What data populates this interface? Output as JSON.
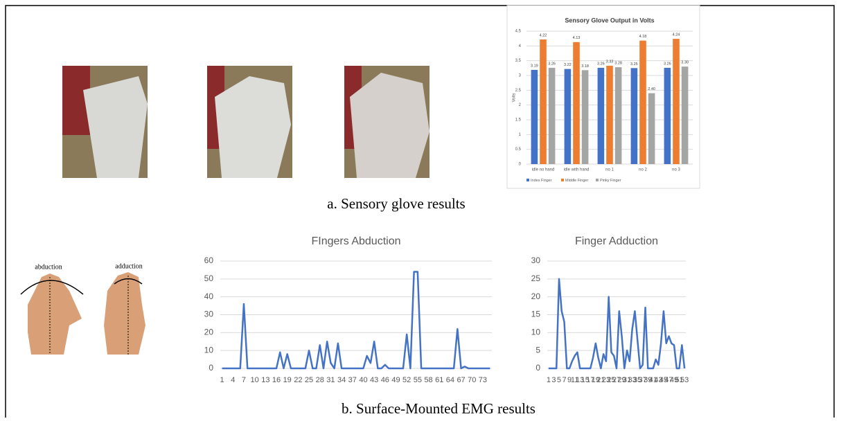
{
  "chart_data": [
    {
      "type": "bar",
      "title": "Sensory Glove Output in Volts",
      "ylabel": "Volts",
      "categories": [
        "idle no hand",
        "idle with hand",
        "no 1",
        "no 2",
        "no 3"
      ],
      "series": [
        {
          "name": "Index Finger",
          "color": "#4472c4",
          "values": [
            3.19,
            3.22,
            3.26,
            3.25,
            3.26
          ],
          "value_labels": [
            "3.19",
            "3.22",
            "3.26",
            "3.25",
            "3.26"
          ]
        },
        {
          "name": "Middle Finger",
          "color": "#ed7d31",
          "values": [
            4.22,
            4.13,
            3.33,
            4.18,
            4.24
          ],
          "value_labels": [
            "4.22",
            "4.13",
            "3.33",
            "4.18",
            "4.24"
          ]
        },
        {
          "name": "Pinky Finger",
          "color": "#a5a5a5",
          "values": [
            3.26,
            3.18,
            3.28,
            2.4,
            3.3
          ],
          "value_labels": [
            "3.26",
            "3.18",
            "3.28",
            "2.40",
            "3.30"
          ]
        }
      ],
      "ylim": [
        0,
        4.5
      ],
      "yticks": [
        0,
        0.5,
        1,
        1.5,
        2,
        2.5,
        3,
        3.5,
        4,
        4.5
      ],
      "grid": true,
      "legend": "bottom"
    },
    {
      "type": "line",
      "title": "FIngers Abduction",
      "color": "#4472c4",
      "categories": [
        "1",
        null,
        null,
        "4",
        null,
        null,
        "7",
        null,
        null,
        "10",
        null,
        null,
        "13",
        null,
        null,
        "16",
        null,
        null,
        "19",
        null,
        null,
        "22",
        null,
        null,
        "25",
        null,
        null,
        "28",
        null,
        null,
        "31",
        null,
        null,
        "34",
        null,
        null,
        "37",
        null,
        null,
        "40",
        null,
        null,
        "43",
        null,
        null,
        "46",
        null,
        null,
        "49",
        null,
        null,
        "52",
        null,
        null,
        "55",
        null,
        null,
        "58",
        null,
        null,
        "61",
        null,
        null,
        "64",
        null,
        null,
        "67",
        null,
        null,
        "70",
        null,
        null,
        "73",
        null,
        null
      ],
      "values": [
        0,
        0,
        0,
        0,
        0,
        0,
        36,
        0,
        0,
        0,
        0,
        0,
        0,
        0,
        0,
        0,
        9,
        0,
        8,
        0,
        0,
        0,
        0,
        0,
        10,
        0,
        0,
        13,
        0,
        15,
        3,
        0,
        14,
        0,
        0,
        0,
        0,
        0,
        0,
        0,
        7,
        3,
        15,
        0,
        0,
        2,
        0,
        0,
        0,
        0,
        0,
        19,
        0,
        54,
        54,
        0,
        0,
        0,
        0,
        0,
        0,
        0,
        0,
        0,
        0,
        22,
        0,
        1,
        0,
        0,
        0,
        0,
        0,
        0,
        0
      ],
      "ylim": [
        0,
        60
      ],
      "yticks": [
        0,
        10,
        20,
        30,
        40,
        50,
        60
      ],
      "grid": true
    },
    {
      "type": "line",
      "title": "Finger Adduction",
      "color": "#4472c4",
      "categories": [
        "1",
        null,
        "3",
        null,
        "5",
        null,
        "7",
        null,
        "9",
        null,
        "11",
        null,
        "13",
        null,
        "15",
        null,
        "17",
        null,
        "19",
        null,
        "21",
        null,
        "23",
        null,
        "25",
        null,
        "27",
        null,
        "29",
        null,
        "31",
        null,
        "33",
        null,
        "35",
        null,
        "37",
        null,
        "39",
        null,
        "41",
        null,
        "43",
        null,
        "45",
        null,
        "47",
        null,
        "49",
        null,
        "51",
        null,
        "53"
      ],
      "values": [
        0,
        0,
        0,
        0,
        25,
        16,
        13,
        0,
        0,
        2,
        3.5,
        4.5,
        0,
        0,
        0,
        0,
        0,
        3,
        7,
        3,
        0,
        4,
        2,
        20,
        4.5,
        3.5,
        0,
        16,
        9,
        0,
        5,
        2,
        11,
        16,
        8,
        0,
        1,
        17,
        0,
        0,
        0,
        2.5,
        1,
        7,
        16,
        7,
        9,
        7,
        6.5,
        0,
        0,
        6.5,
        0
      ],
      "ylim": [
        0,
        30
      ],
      "yticks": [
        0,
        5,
        10,
        15,
        20,
        25,
        30
      ],
      "grid": true
    }
  ],
  "captions": [
    "a. Sensory glove results",
    "b. Surface-Mounted EMG results"
  ],
  "hand_labels": [
    "abduction",
    "adduction"
  ]
}
